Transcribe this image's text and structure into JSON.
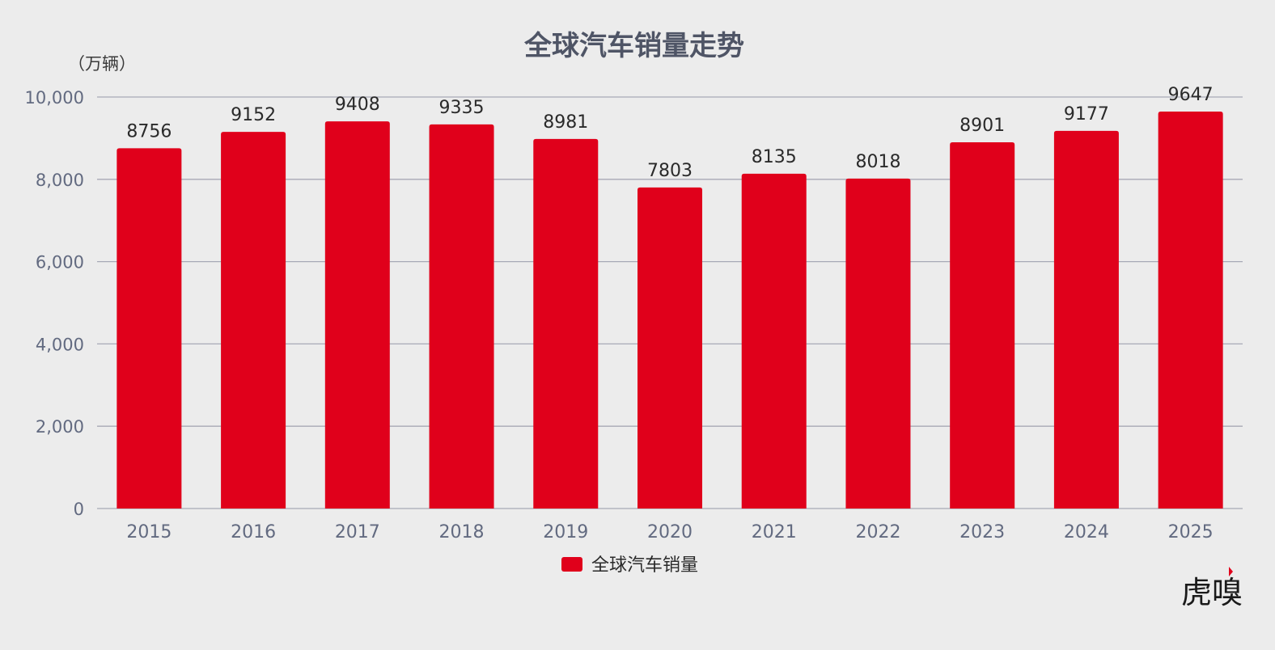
{
  "colors": {
    "bar": "#e0001b",
    "grid": "#a7a9b6",
    "background": "#ececec",
    "logo_accent": "#e0001b"
  },
  "logo": {
    "text": "虎嗅"
  },
  "chart_data": {
    "type": "bar",
    "title": "全球汽车销量走势",
    "unit_label": "（万辆）",
    "categories": [
      "2015",
      "2016",
      "2017",
      "2018",
      "2019",
      "2020",
      "2021",
      "2022",
      "2023",
      "2024",
      "2025"
    ],
    "series": [
      {
        "name": "全球汽车销量",
        "values": [
          8756,
          9152,
          9408,
          9335,
          8981,
          7803,
          8135,
          8018,
          8901,
          9177,
          9647
        ]
      }
    ],
    "y_ticks": [
      0,
      2000,
      4000,
      6000,
      8000,
      10000
    ],
    "y_tick_labels": [
      "0",
      "2,000",
      "4,000",
      "6,000",
      "8,000",
      "10,000"
    ],
    "ylim": [
      0,
      10000
    ],
    "grid": true,
    "legend_position": "bottom-center",
    "data_labels": true
  }
}
